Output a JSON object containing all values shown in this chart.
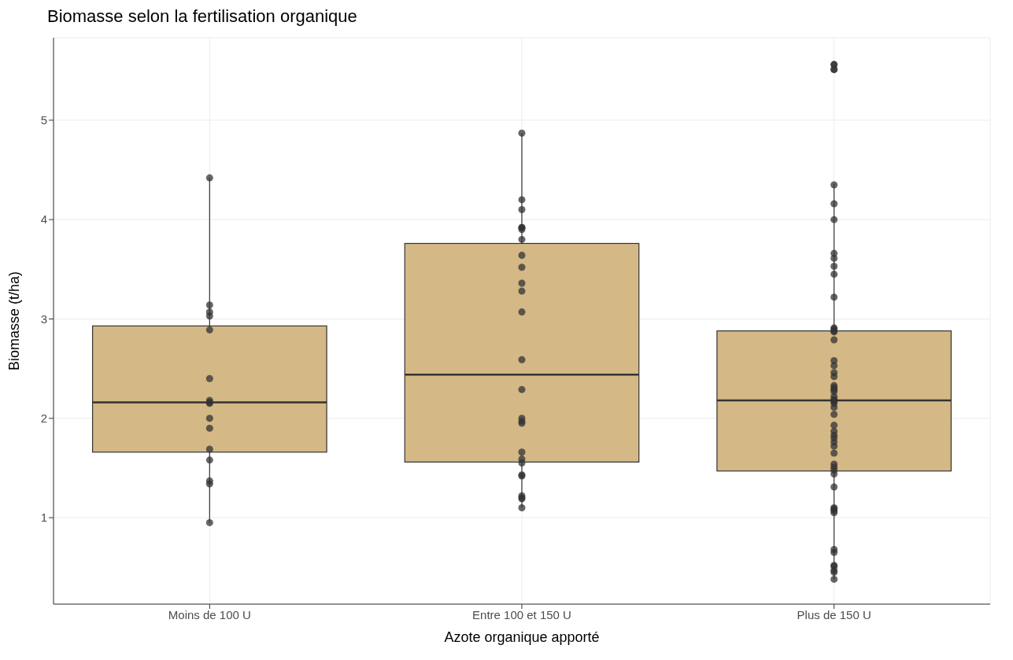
{
  "chart_data": {
    "type": "box",
    "title": "Biomasse selon la fertilisation organique",
    "xlabel": "Azote organique apporté",
    "ylabel": "Biomasse (t/ha)",
    "categories": [
      "Moins de 100 U",
      "Entre 100 et 150 U",
      "Plus de 150 U"
    ],
    "boxes": [
      {
        "low": 0.95,
        "q1": 1.66,
        "median": 2.16,
        "q3": 2.93,
        "high": 4.42
      },
      {
        "low": 1.1,
        "q1": 1.56,
        "median": 2.44,
        "q3": 3.76,
        "high": 4.87
      },
      {
        "low": 0.38,
        "q1": 1.47,
        "median": 2.18,
        "q3": 2.88,
        "high": 4.36
      }
    ],
    "color": "#d4b886",
    "series": [
      {
        "type": "scatter",
        "color": "#333333",
        "marker": "circle",
        "x": [
          "Moins de 100 U",
          "Moins de 100 U",
          "Moins de 100 U",
          "Moins de 100 U",
          "Moins de 100 U",
          "Moins de 100 U",
          "Moins de 100 U",
          "Moins de 100 U",
          "Moins de 100 U",
          "Moins de 100 U",
          "Moins de 100 U",
          "Moins de 100 U",
          "Moins de 100 U",
          "Moins de 100 U",
          "Moins de 100 U",
          "Moins de 100 U",
          "Entre 100 et 150 U",
          "Entre 100 et 150 U",
          "Entre 100 et 150 U",
          "Entre 100 et 150 U",
          "Entre 100 et 150 U",
          "Entre 100 et 150 U",
          "Entre 100 et 150 U",
          "Entre 100 et 150 U",
          "Entre 100 et 150 U",
          "Entre 100 et 150 U",
          "Entre 100 et 150 U",
          "Entre 100 et 150 U",
          "Entre 100 et 150 U",
          "Entre 100 et 150 U",
          "Entre 100 et 150 U",
          "Entre 100 et 150 U",
          "Entre 100 et 150 U",
          "Entre 100 et 150 U",
          "Entre 100 et 150 U",
          "Entre 100 et 150 U",
          "Entre 100 et 150 U",
          "Entre 100 et 150 U",
          "Entre 100 et 150 U",
          "Entre 100 et 150 U",
          "Entre 100 et 150 U",
          "Entre 100 et 150 U",
          "Plus de 150 U",
          "Plus de 150 U",
          "Plus de 150 U",
          "Plus de 150 U",
          "Plus de 150 U",
          "Plus de 150 U",
          "Plus de 150 U",
          "Plus de 150 U",
          "Plus de 150 U",
          "Plus de 150 U",
          "Plus de 150 U",
          "Plus de 150 U",
          "Plus de 150 U",
          "Plus de 150 U",
          "Plus de 150 U",
          "Plus de 150 U",
          "Plus de 150 U",
          "Plus de 150 U",
          "Plus de 150 U",
          "Plus de 150 U",
          "Plus de 150 U",
          "Plus de 150 U",
          "Plus de 150 U",
          "Plus de 150 U",
          "Plus de 150 U",
          "Plus de 150 U",
          "Plus de 150 U",
          "Plus de 150 U",
          "Plus de 150 U",
          "Plus de 150 U",
          "Plus de 150 U",
          "Plus de 150 U",
          "Plus de 150 U",
          "Plus de 150 U",
          "Plus de 150 U",
          "Plus de 150 U",
          "Plus de 150 U",
          "Plus de 150 U",
          "Plus de 150 U",
          "Plus de 150 U",
          "Plus de 150 U",
          "Plus de 150 U",
          "Plus de 150 U",
          "Plus de 150 U",
          "Plus de 150 U",
          "Plus de 150 U",
          "Plus de 150 U",
          "Plus de 150 U",
          "Plus de 150 U",
          "Plus de 150 U",
          "Plus de 150 U",
          "Plus de 150 U",
          "Plus de 150 U",
          "Plus de 150 U",
          "Plus de 150 U"
        ],
        "values": [
          4.42,
          3.14,
          3.07,
          3.03,
          2.89,
          2.4,
          2.18,
          2.15,
          2.16,
          2.0,
          1.9,
          1.69,
          1.58,
          1.37,
          1.34,
          0.95,
          4.87,
          4.2,
          4.1,
          3.92,
          3.92,
          3.9,
          3.8,
          3.64,
          3.52,
          3.36,
          3.28,
          3.07,
          2.59,
          2.29,
          2.0,
          1.97,
          1.95,
          1.66,
          1.59,
          1.55,
          1.43,
          1.42,
          1.22,
          1.2,
          1.19,
          1.1,
          5.56,
          5.56,
          5.51,
          5.51,
          4.35,
          4.16,
          4.0,
          3.66,
          3.61,
          3.53,
          3.45,
          3.22,
          2.91,
          2.9,
          2.88,
          2.87,
          2.79,
          2.58,
          2.53,
          2.46,
          2.42,
          2.33,
          2.31,
          2.29,
          2.27,
          2.22,
          2.19,
          2.17,
          2.18,
          2.15,
          2.11,
          2.04,
          1.93,
          1.87,
          1.83,
          1.8,
          1.76,
          1.72,
          1.65,
          1.54,
          1.51,
          1.48,
          1.44,
          1.31,
          1.1,
          1.09,
          1.07,
          1.05,
          0.68,
          0.65,
          0.52,
          0.51,
          0.47,
          0.45,
          0.38
        ]
      }
    ],
    "ylim": [
      0.13,
      5.83
    ],
    "yticks": [
      1,
      2,
      3,
      4,
      5
    ],
    "grid": true
  }
}
